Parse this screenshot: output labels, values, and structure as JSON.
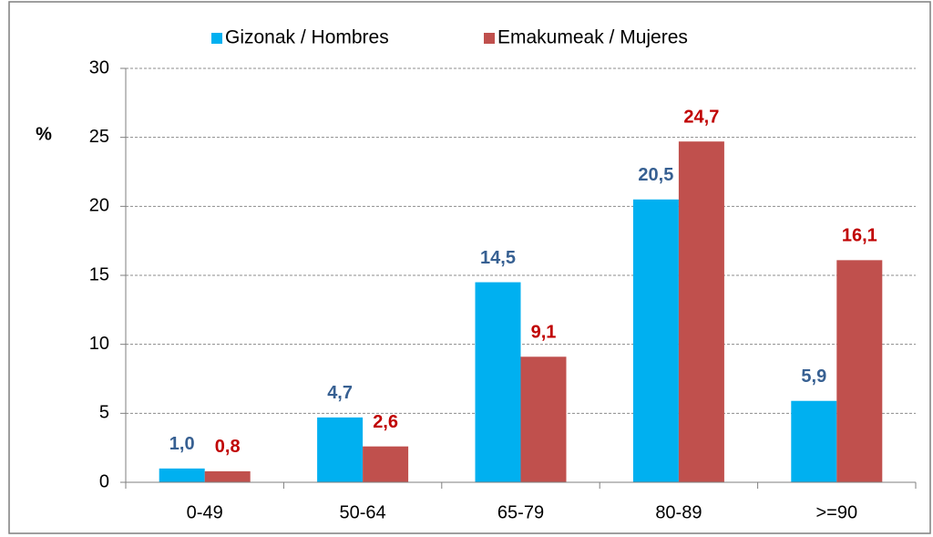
{
  "chart_data": {
    "type": "bar",
    "y_label": "%",
    "categories": [
      "0-49",
      "50-64",
      "65-79",
      "80-89",
      ">=90"
    ],
    "series": [
      {
        "name": "Gizonak / Hombres",
        "color": "#00b0f0",
        "label_color": "#376092",
        "values": [
          1.0,
          4.7,
          14.5,
          20.5,
          5.9
        ],
        "value_labels": [
          "1,0",
          "4,7",
          "14,5",
          "20,5",
          "5,9"
        ]
      },
      {
        "name": "Emakumeak / Mujeres",
        "color": "#c0504d",
        "label_color": "#c00000",
        "values": [
          0.8,
          2.6,
          9.1,
          24.7,
          16.1
        ],
        "value_labels": [
          "0,8",
          "2,6",
          "9,1",
          "24,7",
          "16,1"
        ]
      }
    ],
    "ylim": [
      0,
      30
    ],
    "yticks": [
      0,
      5,
      10,
      15,
      20,
      25,
      30
    ],
    "grid": true,
    "legend": "top"
  }
}
